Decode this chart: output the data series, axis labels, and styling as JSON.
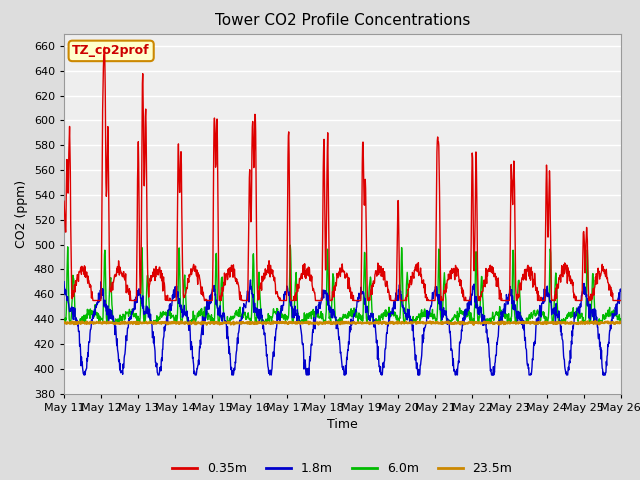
{
  "title": "Tower CO2 Profile Concentrations",
  "xlabel": "Time",
  "ylabel": "CO2 (ppm)",
  "ylim": [
    380,
    670
  ],
  "yticks": [
    380,
    400,
    420,
    440,
    460,
    480,
    500,
    520,
    540,
    560,
    580,
    600,
    620,
    640,
    660
  ],
  "series": {
    "0.35m": {
      "color": "#dd0000",
      "label": "0.35m"
    },
    "1.8m": {
      "color": "#0000cc",
      "label": "1.8m"
    },
    "6.0m": {
      "color": "#00bb00",
      "label": "6.0m"
    },
    "23.5m": {
      "color": "#cc8800",
      "label": "23.5m"
    }
  },
  "legend_label": "TZ_co2prof",
  "legend_box_color": "#ffffcc",
  "legend_box_edge": "#cc8800",
  "legend_text_color": "#cc0000",
  "background_color": "#dddddd",
  "plot_background": "#eeeeee",
  "grid_color": "#ffffff",
  "xtick_labels": [
    "May 11",
    "May 12",
    "May 13",
    "May 14",
    "May 15",
    "May 16",
    "May 17",
    "May 18",
    "May 19",
    "May 20",
    "May 21",
    "May 22",
    "May 23",
    "May 24",
    "May 25",
    "May 26"
  ],
  "num_points": 1500
}
